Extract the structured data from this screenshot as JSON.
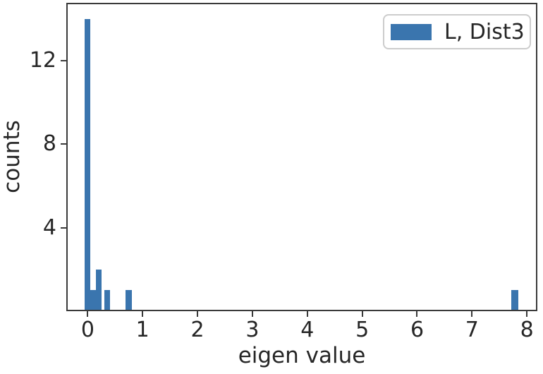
{
  "chart_data": {
    "type": "histogram",
    "title": "",
    "xlabel": "eigen value",
    "ylabel": "counts",
    "legend": {
      "position": "upper right",
      "entries": [
        {
          "label": "L, Dist3",
          "color": "#3a75ae"
        }
      ]
    },
    "bar_color": "#3a75ae",
    "x_ticks": [
      0,
      1,
      2,
      3,
      4,
      5,
      6,
      7,
      8
    ],
    "y_ticks": [
      4,
      8,
      12
    ],
    "xlim": [
      -0.39,
      8.19
    ],
    "ylim": [
      0,
      14.78
    ],
    "grid": false,
    "bars": [
      {
        "x_start": -0.05,
        "x_end": 0.05,
        "count": 14
      },
      {
        "x_start": 0.05,
        "x_end": 0.15,
        "count": 1
      },
      {
        "x_start": 0.15,
        "x_end": 0.25,
        "count": 2
      },
      {
        "x_start": 0.3,
        "x_end": 0.4,
        "count": 1
      },
      {
        "x_start": 0.69,
        "x_end": 0.8,
        "count": 1
      },
      {
        "x_start": 7.71,
        "x_end": 7.84,
        "count": 1
      }
    ],
    "total_count": 20
  },
  "style": {
    "background": "#ffffff",
    "spine_color": "#3a3a3a",
    "tick_color": "#3a3a3a",
    "text_color": "#262626",
    "legend_border_color": "#cccccc"
  }
}
